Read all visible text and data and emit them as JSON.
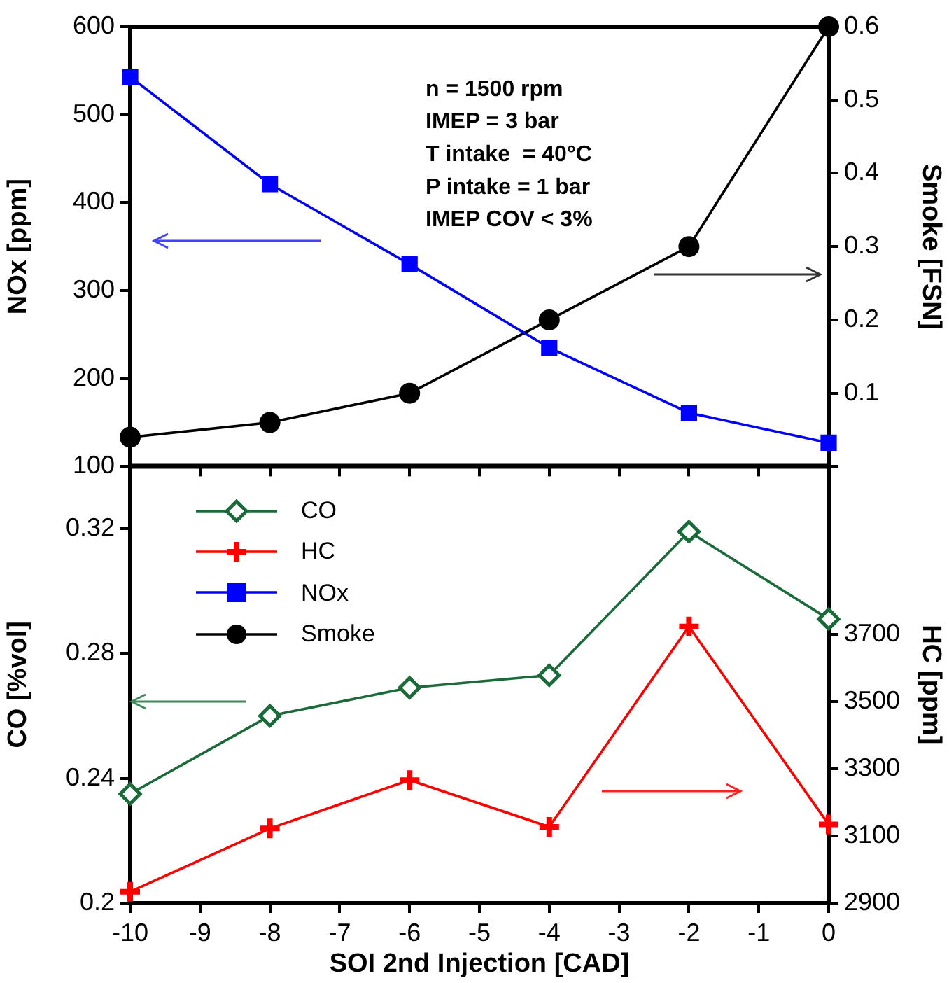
{
  "chart_data": [
    {
      "type": "line",
      "x": [
        -10,
        -8,
        -6,
        -4,
        -2,
        0
      ],
      "xlim": [
        -10,
        0
      ],
      "xticks": [
        -10,
        -9,
        -8,
        -7,
        -6,
        -5,
        -4,
        -3,
        -2,
        -1,
        0
      ],
      "ylabel": "NOx [ppm]",
      "y2label": "Smoke [FSN]",
      "ylim": [
        100,
        600
      ],
      "yticks": [
        100,
        200,
        300,
        400,
        500,
        600
      ],
      "y2lim": [
        0,
        0.6
      ],
      "y2ticks": [
        {
          "value": 0,
          "label": null
        },
        0.1,
        0.2,
        0.3,
        0.4,
        0.5,
        0.6
      ],
      "tick_labels": "y",
      "grid": false,
      "legend": "bottom left",
      "annotations": [
        "n = 1500 rpm",
        "IMEP = 3 bar",
        "T intake  = 40°C",
        "P intake = 1 bar",
        "IMEP COV < 3%"
      ],
      "series": [
        {
          "name": "NOx",
          "color": "#0000ff",
          "marker": "square",
          "values": [
            543,
            421,
            330,
            235,
            161,
            127
          ]
        },
        {
          "name": "Smoke",
          "color": "#000000",
          "marker": "circle",
          "axis": "y2",
          "values": [
            0.04,
            0.06,
            0.1,
            0.2,
            0.3,
            0.6
          ]
        }
      ]
    },
    {
      "type": "line",
      "x": [
        -10,
        -8,
        -6,
        -4,
        -2,
        0
      ],
      "xlim": [
        -10,
        0
      ],
      "xticks": [
        -10,
        -9,
        -8,
        -7,
        -6,
        -5,
        -4,
        -3,
        -2,
        -1,
        0
      ],
      "xlabel": "SOI 2nd Injection [CAD]",
      "ylabel": "CO [%vol]",
      "y2label": "HC [ppm]",
      "ylim": [
        0.2,
        0.34
      ],
      "yticks": [
        0.2,
        0.24,
        0.28,
        0.32
      ],
      "y2lim": [
        2900,
        4200
      ],
      "y2ticks": [
        2900,
        3100,
        3300,
        3500,
        3700
      ],
      "grid": false,
      "legend": "top left",
      "series": [
        {
          "name": "CO",
          "color": "#1b6b3a",
          "marker": "diamond",
          "values": [
            0.235,
            0.26,
            0.269,
            0.273,
            0.319,
            0.291
          ]
        },
        {
          "name": "HC",
          "color": "#ff0000",
          "marker": "cross",
          "axis": "y2",
          "values": [
            2934,
            3122,
            3266,
            3127,
            3723,
            3134
          ]
        }
      ]
    }
  ]
}
